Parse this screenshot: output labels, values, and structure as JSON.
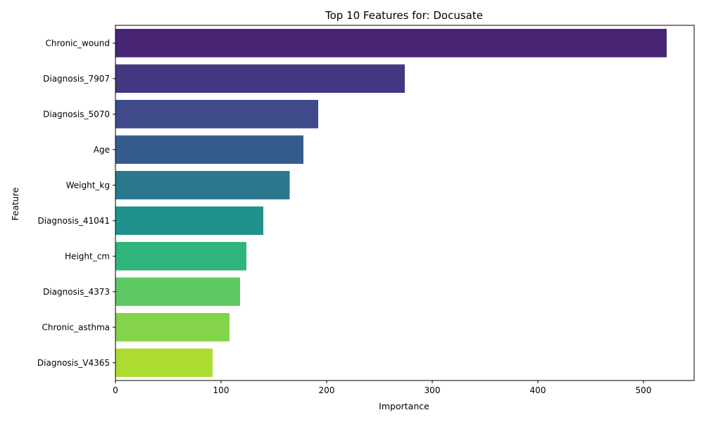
{
  "chart_data": {
    "type": "bar",
    "orientation": "horizontal",
    "title": "Top 10 Features for: Docusate",
    "xlabel": "Importance",
    "ylabel": "Feature",
    "xlim": [
      0,
      548
    ],
    "xticks": [
      0,
      100,
      200,
      300,
      400,
      500
    ],
    "grid": false,
    "categories": [
      "Chronic_wound",
      "Diagnosis_7907",
      "Diagnosis_5070",
      "Age",
      "Weight_kg",
      "Diagnosis_41041",
      "Height_cm",
      "Diagnosis_4373",
      "Chronic_asthma",
      "Diagnosis_V4365"
    ],
    "values": [
      522,
      274,
      192,
      178,
      165,
      140,
      124,
      118,
      108,
      92
    ],
    "colors": [
      "#482475",
      "#453882",
      "#3e4a89",
      "#365c8d",
      "#2a788e",
      "#21918c",
      "#2fb47c",
      "#5ec962",
      "#84d44b",
      "#addc30"
    ]
  }
}
